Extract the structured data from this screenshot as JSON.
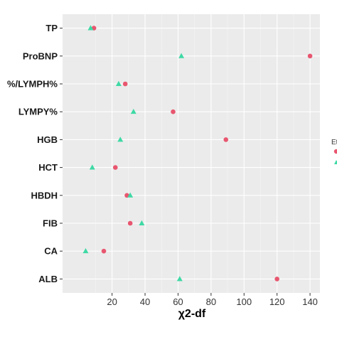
{
  "chart_data": {
    "type": "scatter",
    "xlabel": "χ2-df",
    "ylabel": "",
    "xlim": [
      -10,
      146
    ],
    "xticks": [
      20,
      40,
      60,
      80,
      100,
      120,
      140
    ],
    "grid": true,
    "background": "#ebebeb",
    "categories": [
      "TP",
      "ProBNP",
      "%/LYMPH%",
      "LYMPY%",
      "HGB",
      "HCT",
      "HBDH",
      "FIB",
      "CA",
      "ALB"
    ],
    "series": [
      {
        "marker": "circle",
        "color": "#e8566f",
        "values": [
          9,
          140,
          28,
          57,
          89,
          22,
          29,
          31,
          15,
          120
        ]
      },
      {
        "marker": "triangle",
        "color": "#3fd9a5",
        "values": [
          7,
          62,
          24,
          33,
          25,
          8,
          31,
          38,
          4,
          61
        ]
      }
    ],
    "legend": {
      "position": "right",
      "title_visible": "Et"
    }
  }
}
